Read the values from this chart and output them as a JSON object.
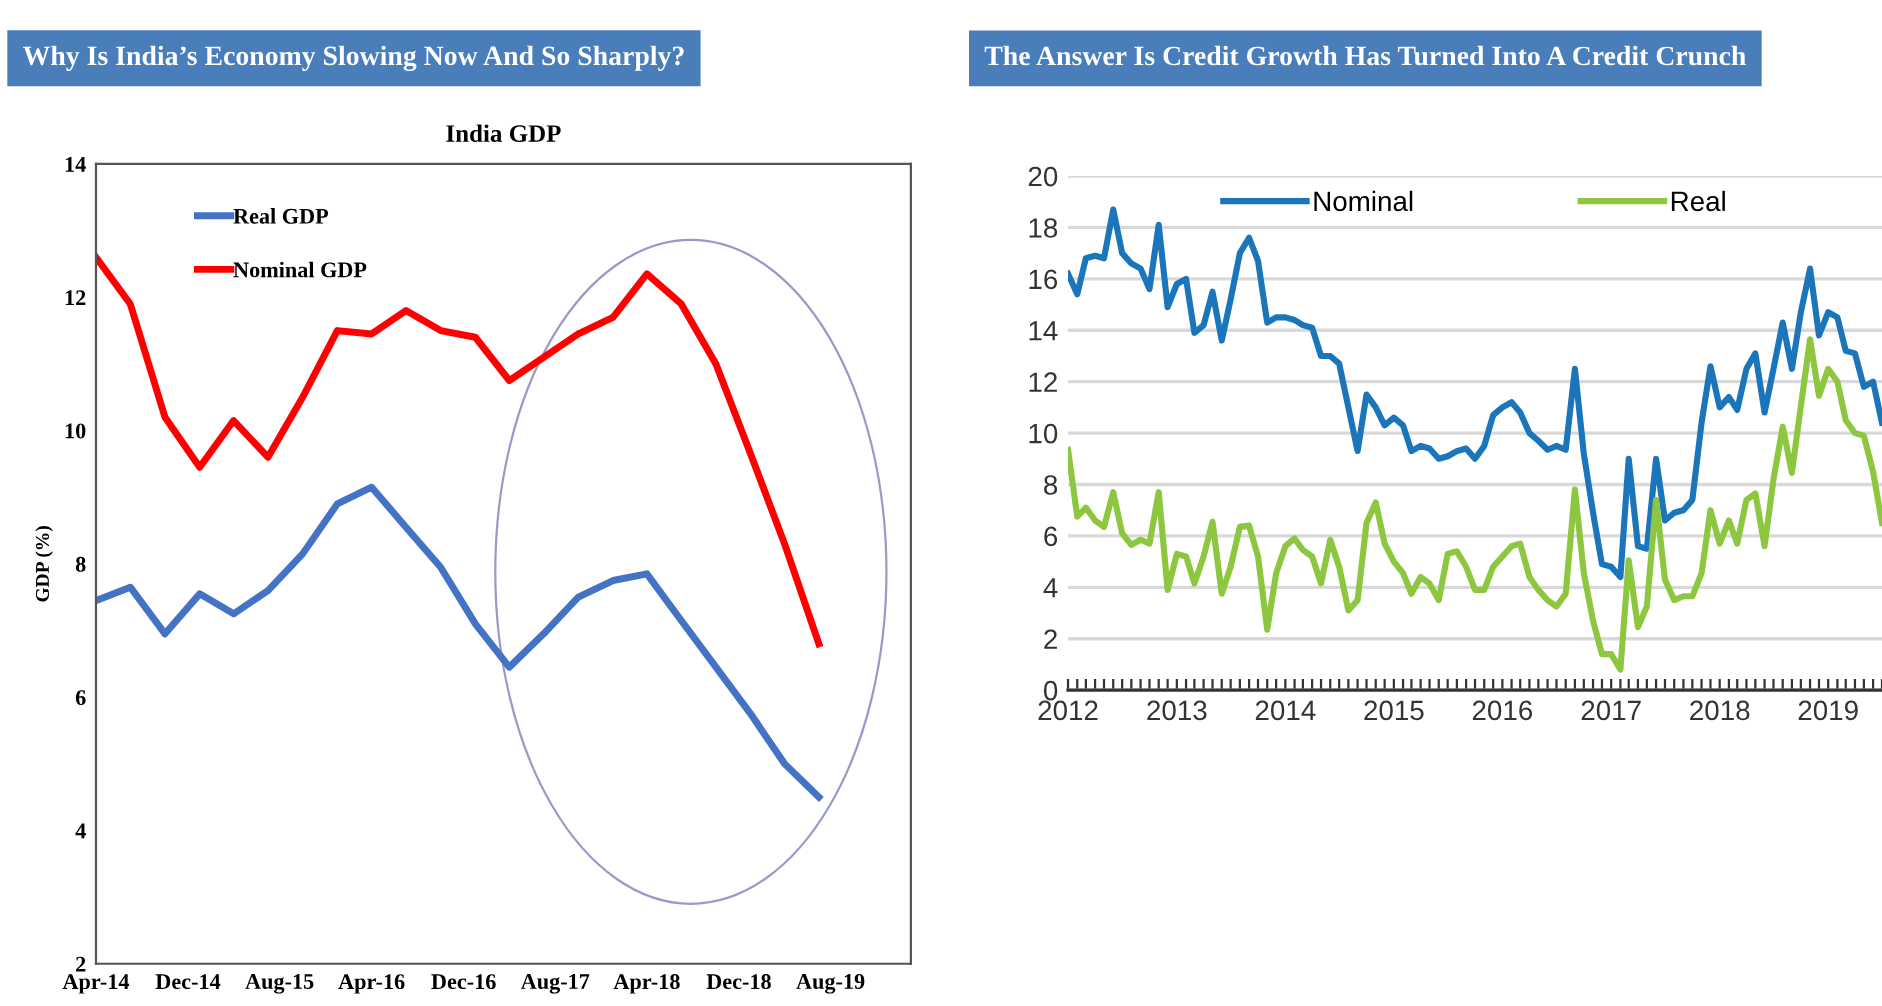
{
  "chart_data": [
    {
      "type": "line",
      "title": "Why Is India’s Economy Slowing Now And So Sharply?",
      "subtitle": "India GDP",
      "ylabel": "GDP (%)",
      "x": [
        "2014-04",
        "2014-07",
        "2014-10",
        "2015-01",
        "2015-04",
        "2015-07",
        "2015-10",
        "2016-01",
        "2016-04",
        "2016-07",
        "2016-10",
        "2017-01",
        "2017-04",
        "2017-07",
        "2017-10",
        "2018-01",
        "2018-04",
        "2018-07",
        "2018-10",
        "2019-01",
        "2019-04",
        "2019-07"
      ],
      "series": [
        {
          "name": "Real GDP",
          "color": "#4472c4",
          "values": [
            7.45,
            7.65,
            6.95,
            7.55,
            7.25,
            7.6,
            8.15,
            8.9,
            9.15,
            8.55,
            7.95,
            7.1,
            6.45,
            6.95,
            7.5,
            7.75,
            7.85,
            7.15,
            6.45,
            5.75,
            5.0,
            4.5
          ]
        },
        {
          "name": "Nominal GDP",
          "color": "#ff0000",
          "values": [
            12.6,
            11.9,
            10.2,
            9.45,
            10.15,
            9.6,
            10.5,
            11.5,
            11.45,
            11.8,
            11.5,
            11.4,
            10.75,
            11.1,
            11.45,
            11.7,
            12.35,
            11.9,
            11.0,
            9.65,
            8.3,
            6.8
          ]
        }
      ],
      "xlim": [
        "2014-04",
        "2020-03"
      ],
      "xticks": [
        {
          "value": "2014-04",
          "label": "Apr-14"
        },
        {
          "value": "2014-12",
          "label": "Dec-14"
        },
        {
          "value": "2015-08",
          "label": "Aug-15"
        },
        {
          "value": "2016-04",
          "label": "Apr-16"
        },
        {
          "value": "2016-12",
          "label": "Dec-16"
        },
        {
          "value": "2017-08",
          "label": "Aug-17"
        },
        {
          "value": "2018-04",
          "label": "Apr-18"
        },
        {
          "value": "2018-12",
          "label": "Dec-18"
        },
        {
          "value": "2019-08",
          "label": "Aug-19"
        }
      ],
      "ylim": [
        2,
        14
      ],
      "yticks": [
        2,
        4,
        6,
        8,
        10,
        12,
        14
      ],
      "grid": false,
      "legend": "top left"
    },
    {
      "type": "line",
      "title": "The Answer Is Credit Growth Has Turned Into A Credit Crunch",
      "x": [
        "2012-01",
        "2012-02",
        "2012-03",
        "2012-04",
        "2012-05",
        "2012-06",
        "2012-07",
        "2012-08",
        "2012-09",
        "2012-10",
        "2012-11",
        "2012-12",
        "2013-01",
        "2013-02",
        "2013-03",
        "2013-04",
        "2013-05",
        "2013-06",
        "2013-07",
        "2013-08",
        "2013-09",
        "2013-10",
        "2013-11",
        "2013-12",
        "2014-01",
        "2014-02",
        "2014-03",
        "2014-04",
        "2014-05",
        "2014-06",
        "2014-07",
        "2014-08",
        "2014-09",
        "2014-10",
        "2014-11",
        "2014-12",
        "2015-01",
        "2015-02",
        "2015-03",
        "2015-04",
        "2015-05",
        "2015-06",
        "2015-07",
        "2015-08",
        "2015-09",
        "2015-10",
        "2015-11",
        "2015-12",
        "2016-01",
        "2016-02",
        "2016-03",
        "2016-04",
        "2016-05",
        "2016-06",
        "2016-07",
        "2016-08",
        "2016-09",
        "2016-10",
        "2016-11",
        "2016-12",
        "2017-01",
        "2017-02",
        "2017-03",
        "2017-04",
        "2017-05",
        "2017-06",
        "2017-07",
        "2017-08",
        "2017-09",
        "2017-10",
        "2017-11",
        "2017-12",
        "2018-01",
        "2018-02",
        "2018-03",
        "2018-04",
        "2018-05",
        "2018-06",
        "2018-07",
        "2018-08",
        "2018-09",
        "2018-10",
        "2018-11",
        "2018-12",
        "2019-01",
        "2019-02",
        "2019-03",
        "2019-04",
        "2019-05",
        "2019-06",
        "2019-07"
      ],
      "series": [
        {
          "name": "Nominal",
          "color": "#1b75bb",
          "values": [
            16.2,
            15.4,
            16.8,
            16.9,
            16.8,
            18.7,
            17.0,
            16.6,
            16.4,
            15.6,
            18.1,
            14.9,
            15.8,
            16.0,
            13.9,
            14.2,
            15.5,
            13.6,
            15.2,
            17.0,
            17.6,
            16.7,
            14.3,
            14.5,
            14.5,
            14.4,
            14.2,
            14.1,
            13.0,
            13.0,
            12.7,
            11.0,
            9.3,
            11.5,
            11.0,
            10.3,
            10.6,
            10.3,
            9.3,
            9.5,
            9.4,
            9.0,
            9.1,
            9.3,
            9.4,
            9.0,
            9.5,
            10.7,
            11.0,
            11.2,
            10.8,
            10.0,
            9.7,
            9.35,
            9.5,
            9.35,
            12.5,
            9.2,
            6.9,
            4.9,
            4.8,
            4.4,
            9.0,
            5.6,
            5.5,
            9.0,
            6.6,
            6.9,
            7.0,
            7.4,
            10.4,
            12.6,
            11.0,
            11.4,
            10.9,
            12.5,
            13.1,
            10.8,
            12.5,
            14.3,
            12.5,
            14.7,
            16.4,
            13.8,
            14.7,
            14.5,
            13.2,
            13.1,
            11.8,
            12.0,
            10.4
          ]
        },
        {
          "name": "Real",
          "color": "#8dc63f",
          "values": [
            9.35,
            6.75,
            7.1,
            6.6,
            6.35,
            7.7,
            6.1,
            5.65,
            5.85,
            5.7,
            7.7,
            3.9,
            5.3,
            5.2,
            4.15,
            5.2,
            6.55,
            3.75,
            4.8,
            6.35,
            6.4,
            5.2,
            2.35,
            4.55,
            5.6,
            5.9,
            5.45,
            5.2,
            4.15,
            5.85,
            4.8,
            3.1,
            3.5,
            6.5,
            7.3,
            5.7,
            5.0,
            4.55,
            3.75,
            4.4,
            4.15,
            3.5,
            5.3,
            5.4,
            4.8,
            3.9,
            3.9,
            4.8,
            5.2,
            5.6,
            5.7,
            4.4,
            3.9,
            3.5,
            3.25,
            3.75,
            7.8,
            4.55,
            2.7,
            1.4,
            1.4,
            0.8,
            5.05,
            2.45,
            3.25,
            7.4,
            4.3,
            3.5,
            3.65,
            3.65,
            4.55,
            7.0,
            5.7,
            6.6,
            5.7,
            7.4,
            7.65,
            5.6,
            8.2,
            10.25,
            8.45,
            11.05,
            13.65,
            11.45,
            12.5,
            12.0,
            10.5,
            10.0,
            9.9,
            8.5,
            6.5
          ]
        }
      ],
      "xlim": [
        "2012-01",
        "2019-07"
      ],
      "xticks": [
        {
          "value": "2012-01",
          "label": "2012"
        },
        {
          "value": "2012-02",
          "label": null
        },
        {
          "value": "2012-03",
          "label": null
        },
        {
          "value": "2012-04",
          "label": null
        },
        {
          "value": "2012-05",
          "label": null
        },
        {
          "value": "2012-06",
          "label": null
        },
        {
          "value": "2012-07",
          "label": null
        },
        {
          "value": "2012-08",
          "label": null
        },
        {
          "value": "2012-09",
          "label": null
        },
        {
          "value": "2012-10",
          "label": null
        },
        {
          "value": "2012-11",
          "label": null
        },
        {
          "value": "2012-12",
          "label": null
        },
        {
          "value": "2013-01",
          "label": "2013"
        },
        {
          "value": "2013-02",
          "label": null
        },
        {
          "value": "2013-03",
          "label": null
        },
        {
          "value": "2013-04",
          "label": null
        },
        {
          "value": "2013-05",
          "label": null
        },
        {
          "value": "2013-06",
          "label": null
        },
        {
          "value": "2013-07",
          "label": null
        },
        {
          "value": "2013-08",
          "label": null
        },
        {
          "value": "2013-09",
          "label": null
        },
        {
          "value": "2013-10",
          "label": null
        },
        {
          "value": "2013-11",
          "label": null
        },
        {
          "value": "2013-12",
          "label": null
        },
        {
          "value": "2014-01",
          "label": "2014"
        },
        {
          "value": "2014-02",
          "label": null
        },
        {
          "value": "2014-03",
          "label": null
        },
        {
          "value": "2014-04",
          "label": null
        },
        {
          "value": "2014-05",
          "label": null
        },
        {
          "value": "2014-06",
          "label": null
        },
        {
          "value": "2014-07",
          "label": null
        },
        {
          "value": "2014-08",
          "label": null
        },
        {
          "value": "2014-09",
          "label": null
        },
        {
          "value": "2014-10",
          "label": null
        },
        {
          "value": "2014-11",
          "label": null
        },
        {
          "value": "2014-12",
          "label": null
        },
        {
          "value": "2015-01",
          "label": "2015"
        },
        {
          "value": "2015-02",
          "label": null
        },
        {
          "value": "2015-03",
          "label": null
        },
        {
          "value": "2015-04",
          "label": null
        },
        {
          "value": "2015-05",
          "label": null
        },
        {
          "value": "2015-06",
          "label": null
        },
        {
          "value": "2015-07",
          "label": null
        },
        {
          "value": "2015-08",
          "label": null
        },
        {
          "value": "2015-09",
          "label": null
        },
        {
          "value": "2015-10",
          "label": null
        },
        {
          "value": "2015-11",
          "label": null
        },
        {
          "value": "2015-12",
          "label": null
        },
        {
          "value": "2016-01",
          "label": "2016"
        },
        {
          "value": "2016-02",
          "label": null
        },
        {
          "value": "2016-03",
          "label": null
        },
        {
          "value": "2016-04",
          "label": null
        },
        {
          "value": "2016-05",
          "label": null
        },
        {
          "value": "2016-06",
          "label": null
        },
        {
          "value": "2016-07",
          "label": null
        },
        {
          "value": "2016-08",
          "label": null
        },
        {
          "value": "2016-09",
          "label": null
        },
        {
          "value": "2016-10",
          "label": null
        },
        {
          "value": "2016-11",
          "label": null
        },
        {
          "value": "2016-12",
          "label": null
        },
        {
          "value": "2017-01",
          "label": "2017"
        },
        {
          "value": "2017-02",
          "label": null
        },
        {
          "value": "2017-03",
          "label": null
        },
        {
          "value": "2017-04",
          "label": null
        },
        {
          "value": "2017-05",
          "label": null
        },
        {
          "value": "2017-06",
          "label": null
        },
        {
          "value": "2017-07",
          "label": null
        },
        {
          "value": "2017-08",
          "label": null
        },
        {
          "value": "2017-09",
          "label": null
        },
        {
          "value": "2017-10",
          "label": null
        },
        {
          "value": "2017-11",
          "label": null
        },
        {
          "value": "2017-12",
          "label": null
        },
        {
          "value": "2018-01",
          "label": "2018"
        },
        {
          "value": "2018-02",
          "label": null
        },
        {
          "value": "2018-03",
          "label": null
        },
        {
          "value": "2018-04",
          "label": null
        },
        {
          "value": "2018-05",
          "label": null
        },
        {
          "value": "2018-06",
          "label": null
        },
        {
          "value": "2018-07",
          "label": null
        },
        {
          "value": "2018-08",
          "label": null
        },
        {
          "value": "2018-09",
          "label": null
        },
        {
          "value": "2018-10",
          "label": null
        },
        {
          "value": "2018-11",
          "label": null
        },
        {
          "value": "2018-12",
          "label": null
        },
        {
          "value": "2019-01",
          "label": "2019"
        },
        {
          "value": "2019-02",
          "label": null
        },
        {
          "value": "2019-03",
          "label": null
        },
        {
          "value": "2019-04",
          "label": null
        },
        {
          "value": "2019-05",
          "label": null
        },
        {
          "value": "2019-06",
          "label": null
        },
        {
          "value": "2019-07",
          "label": null
        }
      ],
      "ylim": [
        0,
        20
      ],
      "yticks": [
        0,
        2,
        4,
        6,
        8,
        10,
        12,
        14,
        16,
        18,
        20
      ],
      "grid": "y",
      "legend": "top"
    }
  ]
}
